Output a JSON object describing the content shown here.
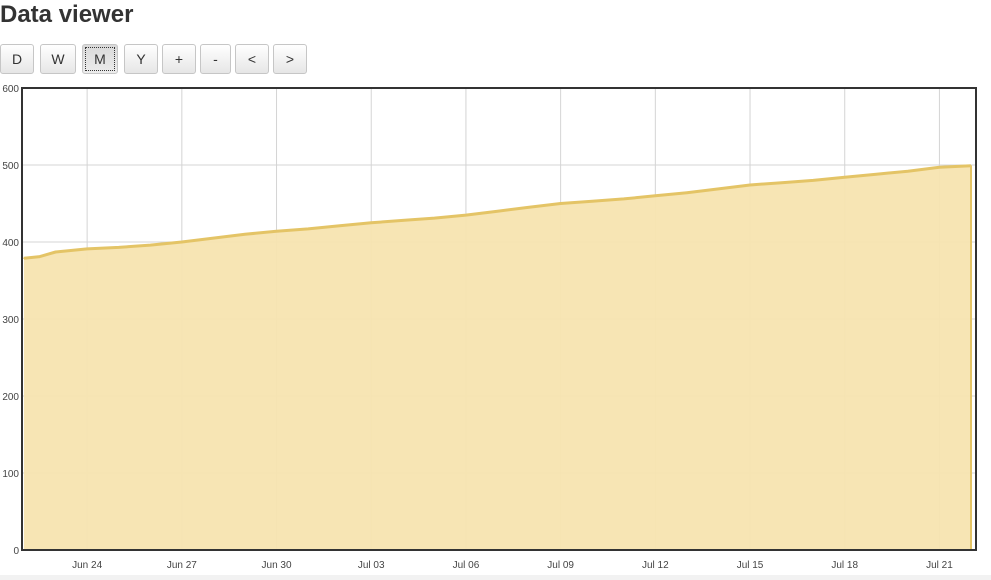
{
  "page": {
    "title": "Data viewer"
  },
  "toolbar": {
    "buttons": [
      {
        "label": "D",
        "active": false
      },
      {
        "label": "W",
        "active": false
      },
      {
        "label": "M",
        "active": true
      },
      {
        "label": "Y",
        "active": false
      },
      {
        "label": "+",
        "active": false
      },
      {
        "label": "-",
        "active": false
      },
      {
        "label": "<",
        "active": false
      },
      {
        "label": ">",
        "active": false
      }
    ]
  },
  "colors": {
    "fill": "#f7e4b0",
    "line": "#e4c466",
    "grid": "#d4d4d4",
    "frame": "#333333"
  },
  "chart_data": {
    "type": "area",
    "title": "",
    "xlabel": "",
    "ylabel": "",
    "ylim": [
      0,
      600
    ],
    "xlim": [
      "2024-06-22",
      "2024-07-22"
    ],
    "yticks": [
      0,
      100,
      200,
      300,
      400,
      500,
      600
    ],
    "xticks": [
      "Jun 24",
      "Jun 27",
      "Jun 30",
      "Jul 03",
      "Jul 06",
      "Jul 09",
      "Jul 12",
      "Jul 15",
      "Jul 18",
      "Jul 21"
    ],
    "xtick_dates": [
      "2024-06-24",
      "2024-06-27",
      "2024-06-30",
      "2024-07-03",
      "2024-07-06",
      "2024-07-09",
      "2024-07-12",
      "2024-07-15",
      "2024-07-18",
      "2024-07-21"
    ],
    "grid": true,
    "legend": "none",
    "series": [
      {
        "x": [
          "2024-06-22",
          "2024-06-22 12:00",
          "2024-06-23",
          "2024-06-24",
          "2024-06-25",
          "2024-06-26",
          "2024-06-27",
          "2024-06-28",
          "2024-06-29",
          "2024-06-30",
          "2024-07-01",
          "2024-07-02",
          "2024-07-03",
          "2024-07-04",
          "2024-07-05",
          "2024-07-06",
          "2024-07-07",
          "2024-07-08",
          "2024-07-09",
          "2024-07-10",
          "2024-07-11",
          "2024-07-12",
          "2024-07-13",
          "2024-07-14",
          "2024-07-15",
          "2024-07-16",
          "2024-07-17",
          "2024-07-18",
          "2024-07-19",
          "2024-07-20",
          "2024-07-21",
          "2024-07-22"
        ],
        "y": [
          379,
          381,
          387,
          391,
          393,
          396,
          400,
          405,
          410,
          414,
          417,
          421,
          425,
          428,
          431,
          435,
          440,
          445,
          450,
          453,
          456,
          460,
          464,
          469,
          474,
          477,
          480,
          484,
          488,
          492,
          497,
          499
        ]
      }
    ]
  }
}
